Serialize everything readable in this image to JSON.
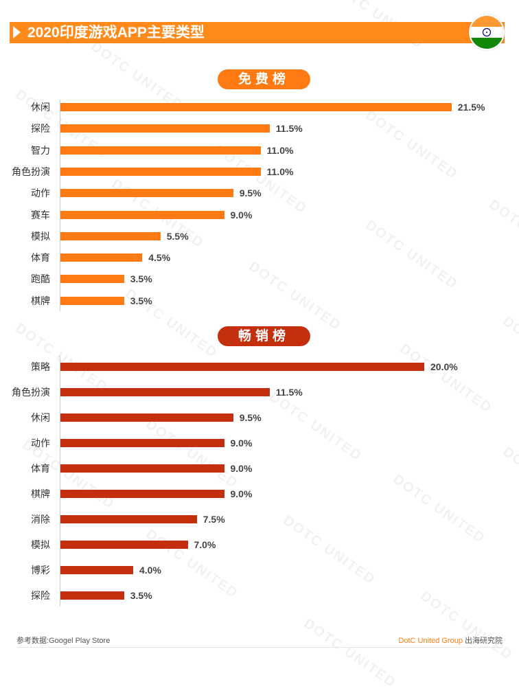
{
  "title": "2020印度游戏APP主要类型",
  "flag_icon": "india-flag-icon",
  "colors": {
    "accent": "#ff8a1a",
    "free_bar": "#ff7a12",
    "paid_bar": "#c4300e"
  },
  "watermark_text": "DOTC UNITED",
  "chart_data": [
    {
      "type": "bar",
      "orientation": "horizontal",
      "title": "免费榜",
      "categories": [
        "休闲",
        "探险",
        "智力",
        "角色扮演",
        "动作",
        "赛车",
        "模拟",
        "体育",
        "跑酷",
        "棋牌"
      ],
      "values": [
        21.5,
        11.5,
        11.0,
        11.0,
        9.5,
        9.0,
        5.5,
        4.5,
        3.5,
        3.5
      ],
      "labels": [
        "21.5%",
        "11.5%",
        "11.0%",
        "11.0%",
        "9.5%",
        "9.0%",
        "5.5%",
        "4.5%",
        "3.5%",
        "3.5%"
      ],
      "unit": "%",
      "grid": false
    },
    {
      "type": "bar",
      "orientation": "horizontal",
      "title": "畅销榜",
      "categories": [
        "策略",
        "角色扮演",
        "休闲",
        "动作",
        "体育",
        "棋牌",
        "消除",
        "模拟",
        "博彩",
        "探险"
      ],
      "values": [
        20.0,
        11.5,
        9.5,
        9.0,
        9.0,
        9.0,
        7.5,
        7.0,
        4.0,
        3.5
      ],
      "labels": [
        "20.0%",
        "11.5%",
        "9.5%",
        "9.0%",
        "9.0%",
        "9.0%",
        "7.5%",
        "7.0%",
        "4.0%",
        "3.5%"
      ],
      "unit": "%",
      "grid": false
    }
  ],
  "footer": {
    "source": "参考数据:Googel Play Store",
    "brand": "DotC United Group",
    "institute": "出海研究院"
  }
}
